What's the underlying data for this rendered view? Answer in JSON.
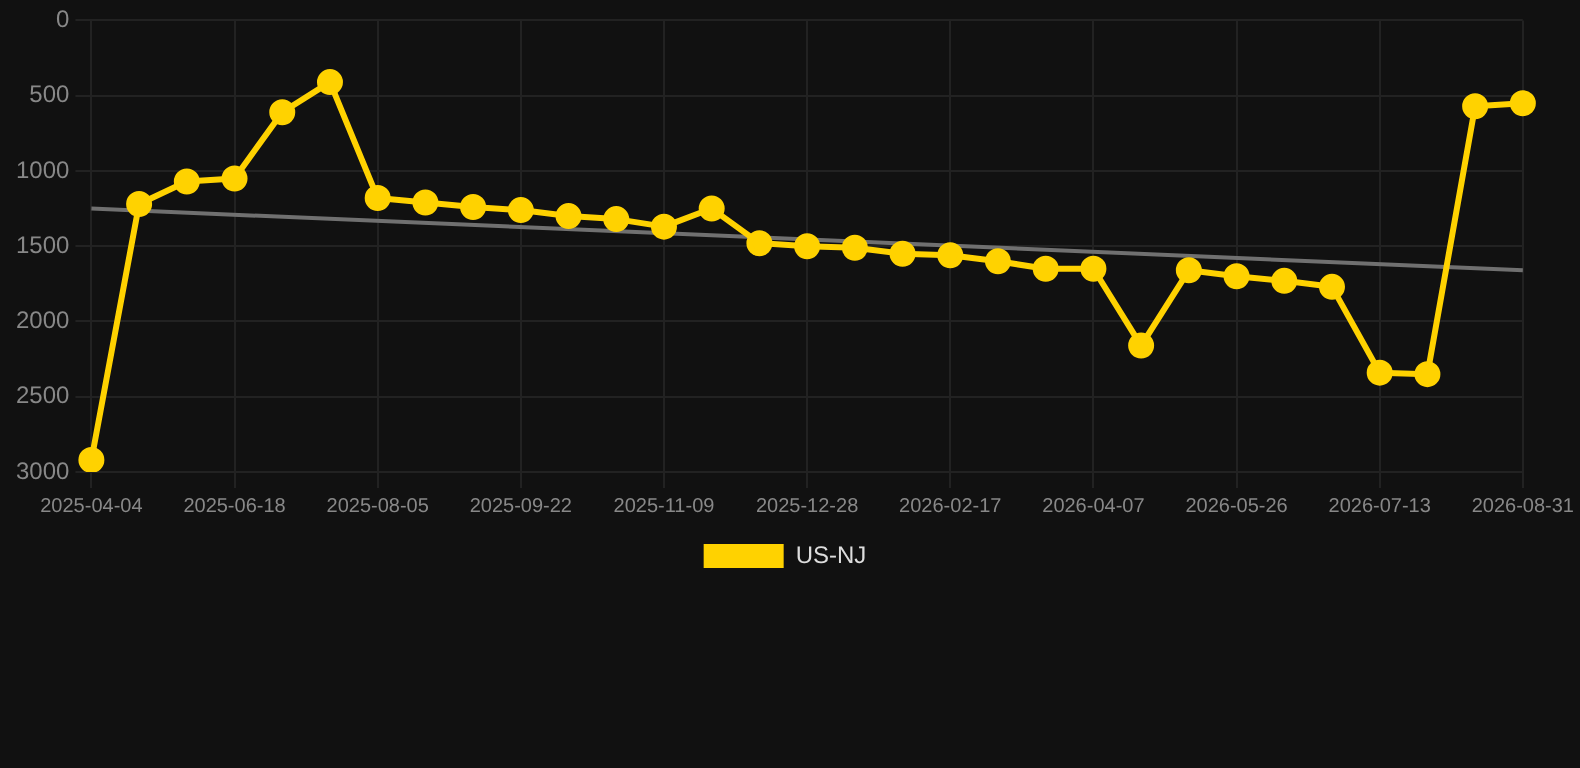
{
  "chart_data": {
    "type": "line",
    "categories": [
      "2025-04-04",
      null,
      null,
      "2025-06-18",
      null,
      null,
      "2025-08-05",
      null,
      null,
      "2025-09-22",
      null,
      null,
      "2025-11-09",
      null,
      null,
      "2025-12-28",
      null,
      null,
      "2026-02-17",
      null,
      null,
      "2026-04-07",
      null,
      null,
      "2026-05-26",
      null,
      null,
      "2026-07-13",
      null,
      null,
      "2026-08-31"
    ],
    "series": [
      {
        "name": "US-NJ",
        "color": "#ffd200",
        "values": [
          2920,
          1220,
          1070,
          1050,
          610,
          410,
          1180,
          1210,
          1240,
          1260,
          1300,
          1320,
          1370,
          1250,
          1480,
          1500,
          1510,
          1550,
          1560,
          1600,
          1650,
          1650,
          2160,
          1660,
          1700,
          1730,
          1770,
          2340,
          2350,
          570,
          550
        ]
      },
      {
        "type": "line",
        "color": "#707070",
        "marker": "none",
        "values": [
          1250,
          null,
          null,
          null,
          null,
          null,
          null,
          null,
          null,
          null,
          null,
          null,
          null,
          null,
          null,
          null,
          null,
          null,
          null,
          null,
          null,
          null,
          null,
          null,
          null,
          null,
          null,
          null,
          null,
          null,
          1660
        ]
      }
    ],
    "ylim": [
      3000,
      0
    ],
    "yticks": [
      0,
      500,
      1000,
      1500,
      2000,
      2500,
      3000
    ],
    "grid": true,
    "legend": "bottom",
    "marker": "circle",
    "line_style": "solid"
  }
}
